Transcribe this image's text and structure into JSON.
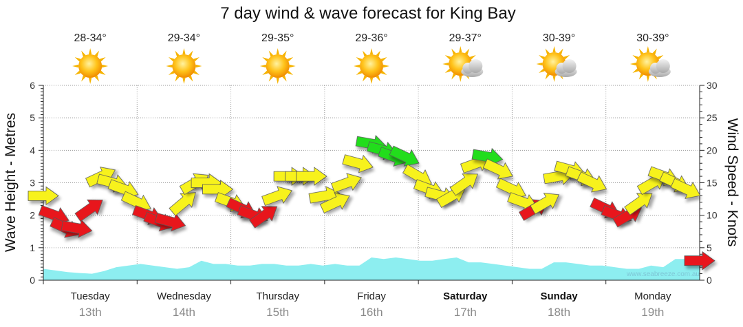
{
  "title": "7 day wind & wave forecast for King Bay",
  "watermark": "www.seabreeze.com.au",
  "colors": {
    "wave_fill": "#8deef0",
    "arrow_yellow": "#f7f21a",
    "arrow_red": "#e8141a",
    "arrow_green": "#22dd1e",
    "grid": "#999999",
    "sun": "#f6b400",
    "cloud": "#bdbdbd"
  },
  "days": [
    {
      "name": "Tuesday",
      "date": "13th",
      "temp": "28-34°",
      "icon": "sun-icon",
      "bold": false
    },
    {
      "name": "Wednesday",
      "date": "14th",
      "temp": "29-34°",
      "icon": "sun-icon",
      "bold": false
    },
    {
      "name": "Thursday",
      "date": "15th",
      "temp": "29-35°",
      "icon": "sun-icon",
      "bold": false
    },
    {
      "name": "Friday",
      "date": "16th",
      "temp": "29-36°",
      "icon": "sun-icon",
      "bold": false
    },
    {
      "name": "Saturday",
      "date": "17th",
      "temp": "29-37°",
      "icon": "partly-cloudy-icon",
      "bold": true
    },
    {
      "name": "Sunday",
      "date": "18th",
      "temp": "30-39°",
      "icon": "partly-cloudy-icon",
      "bold": true
    },
    {
      "name": "Monday",
      "date": "19th",
      "temp": "30-39°",
      "icon": "partly-cloudy-icon",
      "bold": false
    }
  ],
  "chart_data": {
    "type": "area",
    "title": "7 day wind & wave forecast for King Bay",
    "ylabel": "Wave Height - Metres",
    "y2label": "Wind Speed - Knots",
    "ylim": [
      0,
      6
    ],
    "y2lim": [
      0,
      30
    ],
    "yticks": [
      "0",
      "1",
      "2",
      "3",
      "4",
      "5",
      "6"
    ],
    "y2ticks": [
      "0",
      "5",
      "10",
      "15",
      "20",
      "25",
      "30"
    ],
    "grid": true,
    "x_days": 7,
    "wave_height_m": [
      0.35,
      0.3,
      0.25,
      0.22,
      0.2,
      0.28,
      0.4,
      0.45,
      0.5,
      0.45,
      0.4,
      0.35,
      0.4,
      0.6,
      0.5,
      0.5,
      0.45,
      0.45,
      0.5,
      0.5,
      0.45,
      0.45,
      0.5,
      0.45,
      0.5,
      0.45,
      0.45,
      0.7,
      0.65,
      0.7,
      0.65,
      0.6,
      0.6,
      0.65,
      0.7,
      0.55,
      0.55,
      0.5,
      0.45,
      0.4,
      0.35,
      0.35,
      0.55,
      0.55,
      0.5,
      0.45,
      0.45,
      0.4,
      0.35,
      0.35,
      0.45,
      0.4,
      0.65,
      0.65,
      0.6
    ],
    "wind": {
      "x_days": [
        0.0,
        0.12,
        0.24,
        0.36,
        0.5,
        0.62,
        0.74,
        0.86,
        1.0,
        1.12,
        1.24,
        1.36,
        1.5,
        1.62,
        1.74,
        1.86,
        2.0,
        2.12,
        2.24,
        2.36,
        2.5,
        2.62,
        2.74,
        2.86,
        3.0,
        3.12,
        3.24,
        3.36,
        3.5,
        3.62,
        3.74,
        3.86,
        4.0,
        4.12,
        4.24,
        4.36,
        4.5,
        4.62,
        4.74,
        4.86,
        5.0,
        5.12,
        5.24,
        5.36,
        5.5,
        5.62,
        5.74,
        5.86,
        6.0,
        6.12,
        6.24,
        6.36,
        6.5,
        6.62,
        6.74,
        6.86,
        7.0
      ],
      "speed_knots": [
        13,
        10,
        8,
        8,
        11,
        16,
        15,
        14,
        12,
        10,
        9,
        9,
        12,
        15,
        15,
        14,
        12,
        11,
        10,
        10,
        13,
        16,
        16,
        16,
        13,
        12,
        15,
        18,
        21,
        20,
        19,
        19,
        16,
        14,
        13,
        13,
        15,
        18,
        19,
        17,
        14,
        12,
        11,
        12,
        16,
        17,
        16,
        15,
        11,
        10,
        10,
        12,
        15,
        16,
        15,
        14,
        3
      ],
      "direction_deg": [
        0,
        20,
        25,
        10,
        -35,
        -25,
        15,
        20,
        25,
        20,
        20,
        15,
        -40,
        -30,
        0,
        0,
        20,
        25,
        20,
        -35,
        -20,
        0,
        0,
        0,
        -10,
        -25,
        -20,
        15,
        10,
        15,
        20,
        25,
        30,
        20,
        15,
        -30,
        -35,
        -20,
        10,
        25,
        25,
        20,
        -30,
        -30,
        -10,
        15,
        20,
        25,
        25,
        20,
        -30,
        -35,
        -30,
        20,
        25,
        25,
        0
      ],
      "color_rule": "red <= 11 knots, yellow 12-18 knots, green >= 19 knots"
    }
  }
}
